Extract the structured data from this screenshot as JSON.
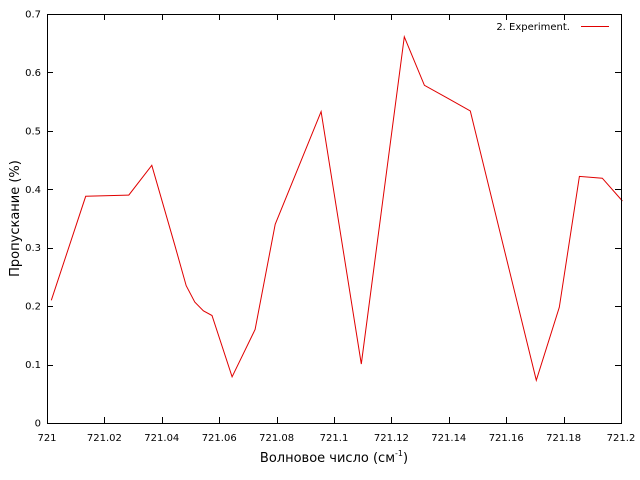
{
  "chart_data": {
    "type": "line",
    "title": "",
    "xlabel": "Волновое число (см",
    "xlabel_sup": "-1",
    "xlabel_end": ")",
    "ylabel": "Пропускание (%)",
    "xlim": [
      721,
      721.2
    ],
    "ylim": [
      0,
      0.7
    ],
    "xticks": [
      721,
      721.02,
      721.04,
      721.06,
      721.08,
      721.1,
      721.12,
      721.14,
      721.16,
      721.18,
      721.2
    ],
    "xtick_labels": [
      "721",
      "721.02",
      "721.04",
      "721.06",
      "721.08",
      "721.1",
      "721.12",
      "721.14",
      "721.16",
      "721.18",
      "721.2"
    ],
    "yticks": [
      0,
      0.1,
      0.2,
      0.3,
      0.4,
      0.5,
      0.6,
      0.7
    ],
    "ytick_labels": [
      "0",
      "0.1",
      "0.2",
      "0.3",
      "0.4",
      "0.5",
      "0.6",
      "0.7"
    ],
    "grid": false,
    "legend_position": "top-right",
    "series": [
      {
        "name": "2. Experiment.",
        "color": "#e00000",
        "x": [
          721.0015,
          721.0135,
          721.0285,
          721.0365,
          721.0445,
          721.0485,
          721.0515,
          721.0545,
          721.0575,
          721.0645,
          721.0725,
          721.0795,
          721.0955,
          721.1095,
          721.1245,
          721.1315,
          721.1395,
          721.1475,
          721.1705,
          721.1785,
          721.1855,
          721.1935,
          721.2005
        ],
        "y": [
          0.21,
          0.388,
          0.39,
          0.441,
          0.305,
          0.235,
          0.207,
          0.192,
          0.184,
          0.079,
          0.16,
          0.34,
          0.533,
          0.101,
          0.661,
          0.578,
          0.556,
          0.534,
          0.073,
          0.198,
          0.422,
          0.419,
          0.38
        ]
      }
    ]
  }
}
